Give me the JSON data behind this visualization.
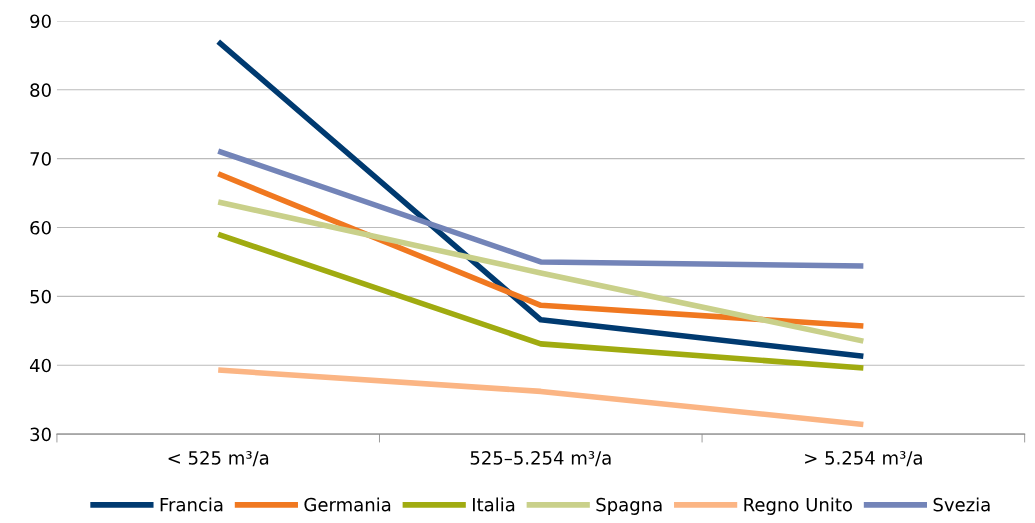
{
  "chart_data": {
    "type": "line",
    "categories": [
      "< 525 m³/a",
      "525–5.254 m³/a",
      "> 5.254 m³/a"
    ],
    "series": [
      {
        "name": "Francia",
        "color": "#003a70",
        "values": [
          87,
          46.6,
          41.3
        ]
      },
      {
        "name": "Germania",
        "color": "#f07820",
        "values": [
          67.8,
          48.7,
          45.7
        ]
      },
      {
        "name": "Italia",
        "color": "#a0ab10",
        "values": [
          59,
          43.1,
          39.6
        ]
      },
      {
        "name": "Spagna",
        "color": "#c9d08a",
        "values": [
          63.7,
          53.4,
          43.5
        ]
      },
      {
        "name": "Regno Unito",
        "color": "#fbb584",
        "values": [
          39.3,
          36.2,
          31.4
        ]
      },
      {
        "name": "Svezia",
        "color": "#7384b8",
        "values": [
          71.1,
          55,
          54.4
        ]
      }
    ],
    "ylim": [
      30,
      90
    ],
    "yticks": [
      30,
      40,
      50,
      60,
      70,
      80,
      90
    ],
    "grid": "y",
    "legend": "bottom",
    "marker": "none",
    "line_style": "solid"
  }
}
